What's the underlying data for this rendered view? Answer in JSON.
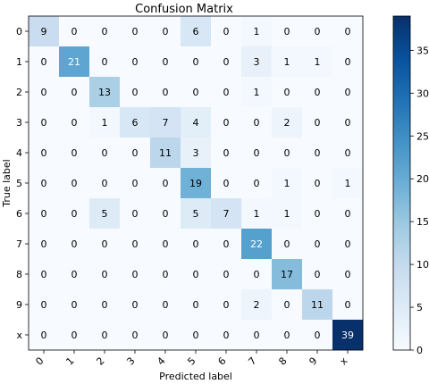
{
  "chart_data": {
    "type": "heatmap",
    "title": "Confusion Matrix",
    "xlabel": "Predicted label",
    "ylabel": "True label",
    "x_categories": [
      "0",
      "1",
      "2",
      "3",
      "4",
      "5",
      "6",
      "7",
      "8",
      "9",
      "x"
    ],
    "y_categories": [
      "0",
      "1",
      "2",
      "3",
      "4",
      "5",
      "6",
      "7",
      "8",
      "9",
      "x"
    ],
    "values": [
      [
        9,
        0,
        0,
        0,
        0,
        6,
        0,
        1,
        0,
        0,
        0
      ],
      [
        0,
        21,
        0,
        0,
        0,
        0,
        0,
        3,
        1,
        1,
        0
      ],
      [
        0,
        0,
        13,
        0,
        0,
        0,
        0,
        1,
        0,
        0,
        0
      ],
      [
        0,
        0,
        1,
        6,
        7,
        4,
        0,
        0,
        2,
        0,
        0
      ],
      [
        0,
        0,
        0,
        0,
        11,
        3,
        0,
        0,
        0,
        0,
        0
      ],
      [
        0,
        0,
        0,
        0,
        0,
        19,
        0,
        0,
        1,
        0,
        1
      ],
      [
        0,
        0,
        5,
        0,
        0,
        5,
        7,
        1,
        1,
        0,
        0
      ],
      [
        0,
        0,
        0,
        0,
        0,
        0,
        0,
        22,
        0,
        0,
        0
      ],
      [
        0,
        0,
        0,
        0,
        0,
        0,
        0,
        0,
        17,
        0,
        0
      ],
      [
        0,
        0,
        0,
        0,
        0,
        0,
        0,
        2,
        0,
        11,
        0
      ],
      [
        0,
        0,
        0,
        0,
        0,
        0,
        0,
        0,
        0,
        0,
        39
      ]
    ],
    "colormap": "Blues",
    "vmin": 0,
    "vmax": 39,
    "colorbar_ticks": [
      "0",
      "5",
      "10",
      "15",
      "20",
      "25",
      "30",
      "35"
    ],
    "grid": false
  }
}
